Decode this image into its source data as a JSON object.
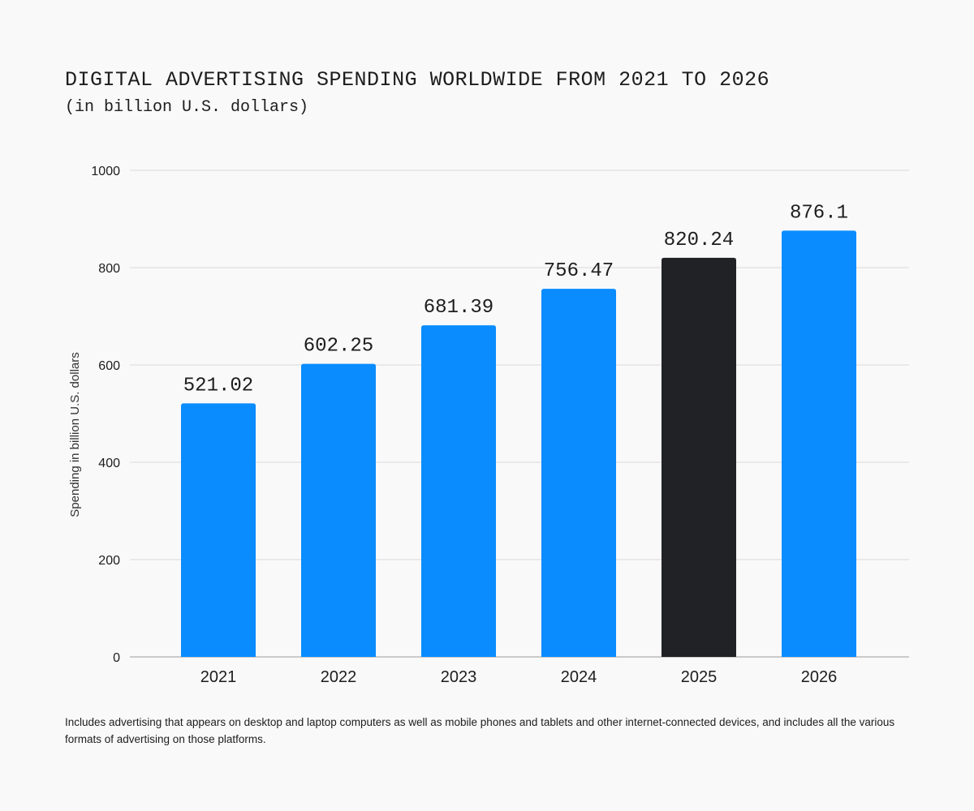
{
  "chart_data": {
    "type": "bar",
    "title": "DIGITAL ADVERTISING SPENDING WORLDWIDE FROM 2021 TO 2026",
    "subtitle": "(in billion U.S. dollars)",
    "xlabel": "",
    "ylabel": "Spending in billion U.S. dollars",
    "categories": [
      "2021",
      "2022",
      "2023",
      "2024",
      "2025",
      "2026"
    ],
    "values": [
      521.02,
      602.25,
      681.39,
      756.47,
      820.24,
      876.1
    ],
    "value_labels": [
      "521.02",
      "602.25",
      "681.39",
      "756.47",
      "820.24",
      "876.1"
    ],
    "highlight_index": 4,
    "ylim": [
      0,
      1000
    ],
    "yticks": [
      0,
      200,
      400,
      600,
      800,
      1000
    ],
    "grid": true,
    "colors": {
      "bar": "#0a8cff",
      "highlight": "#212225",
      "grid": "#d9d9d9",
      "axis": "#9a9a9a"
    }
  },
  "footnote": "Includes advertising that appears on desktop and laptop computers as well as mobile phones and tablets and other internet-connected devices, and includes all the various formats of advertising on those platforms."
}
